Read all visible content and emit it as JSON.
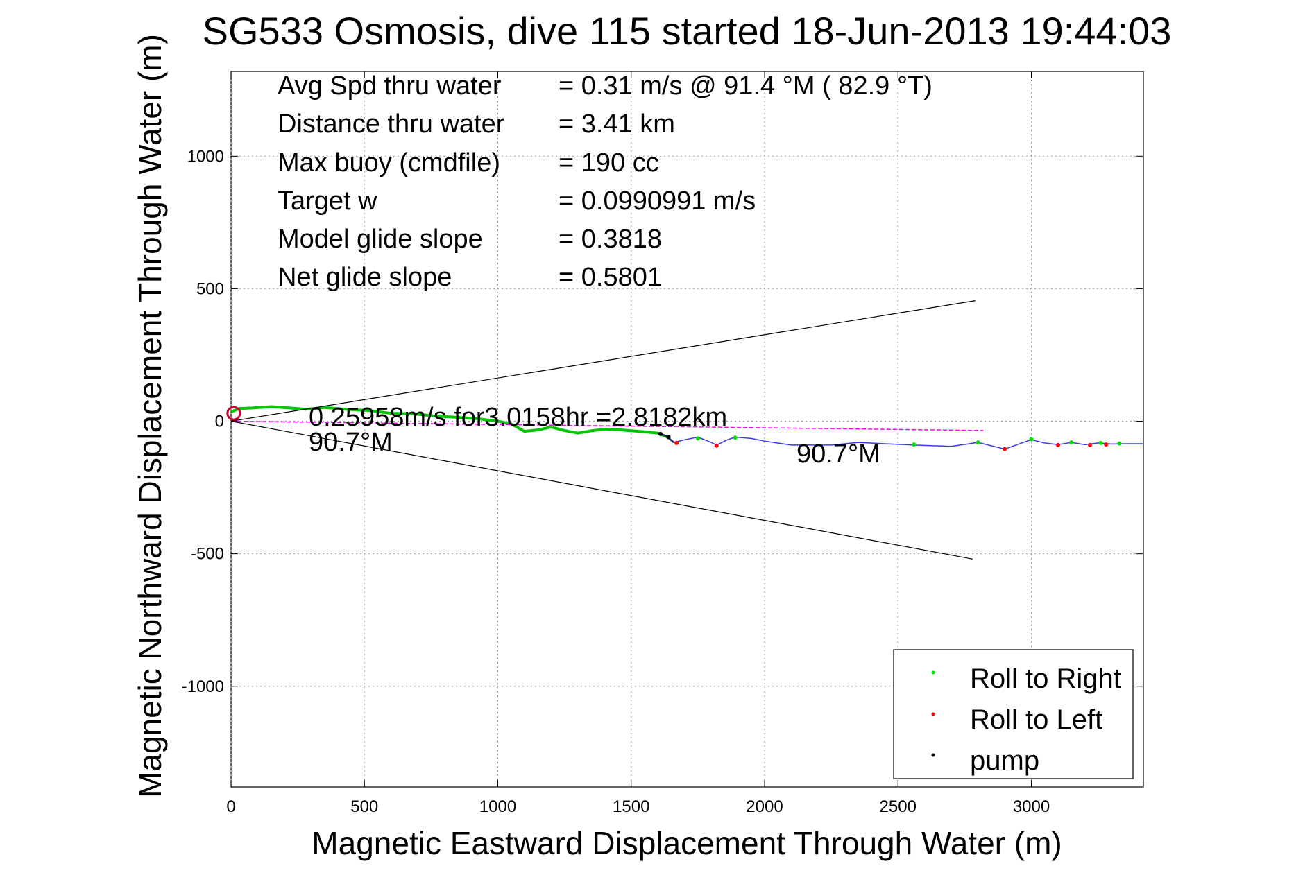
{
  "chart_data": {
    "type": "line",
    "title": "SG533 Osmosis, dive 115 started 18-Jun-2013 19:44:03",
    "xlabel": "Magnetic Eastward Displacement Through Water (m)",
    "ylabel": "Magnetic Northward Displacement Through Water (m)",
    "xlim": [
      0,
      3420
    ],
    "ylim": [
      -1380,
      1320
    ],
    "xticks": [
      0,
      500,
      1000,
      1500,
      2000,
      2500,
      3000
    ],
    "xtick_labels": [
      "0",
      "500",
      "1000",
      "1500",
      "2000",
      "2500",
      "3000"
    ],
    "yticks": [
      1000,
      500,
      0,
      -500,
      -1000
    ],
    "ytick_labels": [
      "1000",
      "500",
      "0",
      "-500",
      "-1000"
    ],
    "grid": true,
    "stats": [
      {
        "label": "Avg Spd thru water",
        "value": "=  0.31 m/s @  91.4 °M ( 82.9 °T)"
      },
      {
        "label": "Distance thru water",
        "value": "=  3.41 km"
      },
      {
        "label": "Max buoy (cmdfile)",
        "value": "= 190 cc"
      },
      {
        "label": "Target w",
        "value": "= 0.0990991 m/s"
      },
      {
        "label": "Model glide slope",
        "value": "= 0.3818"
      },
      {
        "label": "Net glide slope",
        "value": "= 0.5801"
      }
    ],
    "annotations": {
      "drift": "0.25958m/s for3.0158hr =2.8182km",
      "heading_start": "90.7°M",
      "heading_end": "90.7°M"
    },
    "legend": {
      "placement": "bottom-right",
      "entries": [
        {
          "name": "Roll to Right",
          "color": "#00dd00"
        },
        {
          "name": "Roll to Left",
          "color": "#ff0000"
        },
        {
          "name": "pump",
          "color": "#000000"
        }
      ]
    },
    "series": [
      {
        "role": "glide-track-dive",
        "color": "#00c800",
        "x": [
          0,
          30,
          80,
          150,
          220,
          280,
          350,
          430,
          520,
          600,
          680,
          760,
          840,
          920,
          1000,
          1050,
          1100,
          1150,
          1200,
          1250,
          1300,
          1350,
          1400,
          1450,
          1500,
          1550,
          1600,
          1640
        ],
        "y": [
          35,
          48,
          50,
          55,
          50,
          45,
          52,
          45,
          40,
          30,
          28,
          20,
          15,
          10,
          0,
          -10,
          -38,
          -33,
          -22,
          -35,
          -45,
          -36,
          -30,
          -32,
          -36,
          -40,
          -45,
          -62
        ]
      },
      {
        "role": "pump-segment",
        "color": "#1a1a6a",
        "x": [
          1600,
          1630,
          1660
        ],
        "y": [
          -45,
          -55,
          -80
        ]
      },
      {
        "role": "glide-track-surface",
        "color": "#3a3af0",
        "x": [
          1660,
          1700,
          1750,
          1800,
          1820,
          1860,
          1890,
          1950,
          2000,
          2100,
          2250,
          2350,
          2450,
          2560,
          2700,
          2800,
          2900,
          2970,
          3000,
          3050,
          3100,
          3150,
          3200,
          3250,
          3300,
          3350,
          3420
        ],
        "y": [
          -80,
          -70,
          -60,
          -80,
          -90,
          -70,
          -60,
          -65,
          -75,
          -90,
          -90,
          -80,
          -85,
          -90,
          -95,
          -80,
          -105,
          -80,
          -70,
          -82,
          -88,
          -80,
          -88,
          -82,
          -86,
          -85,
          -85
        ]
      },
      {
        "role": "roll-to-right",
        "color": "#00dd00",
        "x": [
          1750,
          1890,
          2560,
          2800,
          3000,
          3150,
          3260,
          3330
        ],
        "y": [
          -65,
          -62,
          -88,
          -80,
          -68,
          -80,
          -82,
          -84
        ]
      },
      {
        "role": "roll-to-left",
        "color": "#ff0000",
        "x": [
          1670,
          1820,
          2900,
          3100,
          3220,
          3280
        ],
        "y": [
          -82,
          -92,
          -105,
          -90,
          -90,
          -88
        ]
      },
      {
        "role": "pump",
        "color": "#000000",
        "x": [
          1610,
          1640
        ],
        "y": [
          -48,
          -60
        ]
      },
      {
        "role": "drift-line",
        "color": "#ff00ff",
        "x": [
          0,
          2820
        ],
        "y": [
          0,
          -35
        ]
      },
      {
        "role": "envelope-upper",
        "color": "#000000",
        "x": [
          0,
          2790
        ],
        "y": [
          0,
          455
        ]
      },
      {
        "role": "envelope-lower",
        "color": "#000000",
        "x": [
          0,
          2780
        ],
        "y": [
          0,
          -520
        ]
      }
    ]
  }
}
